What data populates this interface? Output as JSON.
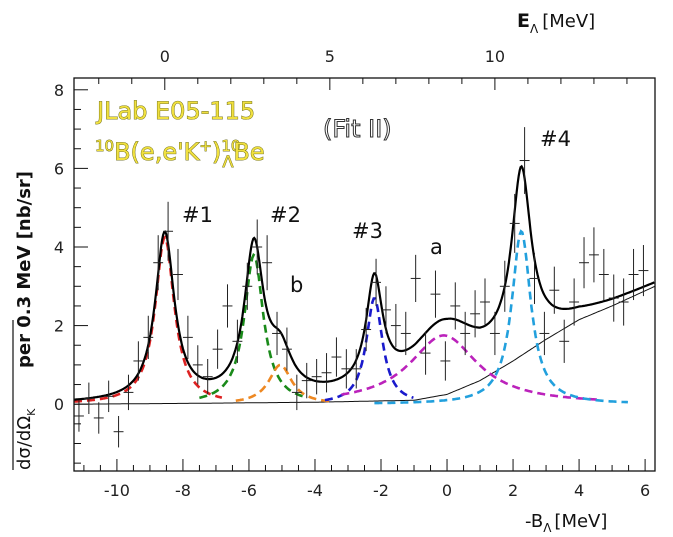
{
  "chart_data": {
    "type": "line",
    "bottom_axis": {
      "label_main": "-B",
      "label_sub": "Λ",
      "label_unit": "[MeV]",
      "range": [
        -11.3,
        6.3
      ],
      "ticks": [
        "-10",
        "-8",
        "-6",
        "-4",
        "-2",
        "0",
        "2",
        "4",
        "6"
      ],
      "tick_values": [
        -10,
        -8,
        -6,
        -4,
        -2,
        0,
        2,
        4,
        6
      ]
    },
    "top_axis": {
      "label_main": "E",
      "label_sub": "Λ",
      "label_unit": "[MeV]",
      "offset": -8.55,
      "ticks": [
        "0",
        "5",
        "10"
      ],
      "tick_values": [
        0,
        5,
        10
      ]
    },
    "y_axis": {
      "label_left": "dσ/dΩ",
      "label_left_sub": "K",
      "label_right": "per 0.3 MeV [nb/sr]",
      "range": [
        -1.7,
        8.3
      ],
      "ticks": [
        "0",
        "2",
        "4",
        "6",
        "8"
      ],
      "tick_values": [
        0,
        2,
        4,
        6,
        8
      ]
    },
    "annotations": {
      "experiment": "JLab E05-115",
      "reaction_pre": "B(e,e'K",
      "reaction_sup_plus": "+",
      "reaction_close": ")",
      "reaction_sup_a": "10",
      "reaction_sup_b": "10",
      "reaction_sub": "Λ",
      "reaction_end": "Be",
      "fit": "(Fit II)",
      "peak_labels": [
        "#1",
        "#2",
        "#3",
        "#4",
        "a",
        "b"
      ]
    },
    "background_line": [
      [
        -11.3,
        0.0
      ],
      [
        -8,
        0.02
      ],
      [
        -4,
        0.05
      ],
      [
        -1,
        0.1
      ],
      [
        0,
        0.25
      ],
      [
        1,
        0.6
      ],
      [
        2,
        1.1
      ],
      [
        3,
        1.65
      ],
      [
        4,
        2.15
      ],
      [
        5,
        2.5
      ],
      [
        6.3,
        3.0
      ]
    ],
    "peaks": [
      {
        "name": "#1",
        "center": -8.55,
        "amplitude": 4.25,
        "width": 0.35,
        "color": "#dd2222",
        "range": [
          -11.3,
          -6.8
        ]
      },
      {
        "name": "#2",
        "center": -5.85,
        "amplitude": 3.8,
        "width": 0.35,
        "color": "#1a8a1a",
        "range": [
          -7.5,
          -4.3
        ]
      },
      {
        "name": "b",
        "center": -5.05,
        "amplitude": 1.0,
        "width": 0.42,
        "color": "#ee8822",
        "range": [
          -6.4,
          -3.5
        ]
      },
      {
        "name": "#3",
        "center": -2.2,
        "amplitude": 2.7,
        "width": 0.3,
        "color": "#1a1acc",
        "range": [
          -3.7,
          -1.0
        ]
      },
      {
        "name": "a",
        "center": -0.1,
        "amplitude": 1.75,
        "width": 1.25,
        "color": "#bb22bb",
        "range": [
          -3.2,
          4.6
        ]
      },
      {
        "name": "#4",
        "center": 2.25,
        "amplitude": 4.4,
        "width": 0.35,
        "color": "#22a0dd",
        "range": [
          -2.2,
          5.5
        ]
      }
    ],
    "data_points": [
      [
        -11.15,
        -0.3,
        0.4
      ],
      [
        -10.85,
        0.15,
        0.4
      ],
      [
        -10.55,
        -0.35,
        0.4
      ],
      [
        -10.25,
        0.2,
        0.4
      ],
      [
        -9.95,
        -0.7,
        0.4
      ],
      [
        -9.65,
        0.3,
        0.45
      ],
      [
        -9.35,
        1.1,
        0.5
      ],
      [
        -9.05,
        1.7,
        0.55
      ],
      [
        -8.75,
        3.6,
        0.7
      ],
      [
        -8.45,
        4.4,
        0.75
      ],
      [
        -8.15,
        3.3,
        0.65
      ],
      [
        -7.85,
        1.7,
        0.55
      ],
      [
        -7.55,
        1.0,
        0.5
      ],
      [
        -7.25,
        0.7,
        0.45
      ],
      [
        -6.95,
        1.4,
        0.5
      ],
      [
        -6.65,
        2.5,
        0.55
      ],
      [
        -6.35,
        1.6,
        0.55
      ],
      [
        -6.05,
        3.0,
        0.6
      ],
      [
        -5.75,
        4.0,
        0.7
      ],
      [
        -5.45,
        3.6,
        0.7
      ],
      [
        -5.15,
        1.8,
        0.55
      ],
      [
        -4.85,
        1.4,
        0.55
      ],
      [
        -4.55,
        0.3,
        0.45
      ],
      [
        -4.25,
        0.6,
        0.45
      ],
      [
        -3.95,
        0.7,
        0.45
      ],
      [
        -3.65,
        0.8,
        0.5
      ],
      [
        -3.35,
        1.2,
        0.5
      ],
      [
        -3.05,
        0.9,
        0.5
      ],
      [
        -2.75,
        0.9,
        0.5
      ],
      [
        -2.45,
        1.9,
        0.55
      ],
      [
        -2.15,
        3.1,
        0.6
      ],
      [
        -1.85,
        2.4,
        0.6
      ],
      [
        -1.55,
        2.0,
        0.55
      ],
      [
        -1.25,
        1.8,
        0.55
      ],
      [
        -0.95,
        3.2,
        0.6
      ],
      [
        -0.65,
        1.3,
        0.55
      ],
      [
        -0.35,
        2.8,
        0.6
      ],
      [
        -0.05,
        1.1,
        0.5
      ],
      [
        0.25,
        2.5,
        0.6
      ],
      [
        0.55,
        1.8,
        0.55
      ],
      [
        0.85,
        2.3,
        0.6
      ],
      [
        1.15,
        2.6,
        0.6
      ],
      [
        1.45,
        1.8,
        0.55
      ],
      [
        1.75,
        3.0,
        0.65
      ],
      [
        2.05,
        4.6,
        0.75
      ],
      [
        2.35,
        6.2,
        0.85
      ],
      [
        2.65,
        3.2,
        0.65
      ],
      [
        2.95,
        1.8,
        0.55
      ],
      [
        3.25,
        2.9,
        0.6
      ],
      [
        3.55,
        1.6,
        0.55
      ],
      [
        3.85,
        2.6,
        0.6
      ],
      [
        4.15,
        3.6,
        0.65
      ],
      [
        4.45,
        3.8,
        0.7
      ],
      [
        4.75,
        3.3,
        0.65
      ],
      [
        5.05,
        2.7,
        0.6
      ],
      [
        5.35,
        2.6,
        0.6
      ],
      [
        5.65,
        3.3,
        0.65
      ],
      [
        5.95,
        3.4,
        0.65
      ]
    ]
  }
}
